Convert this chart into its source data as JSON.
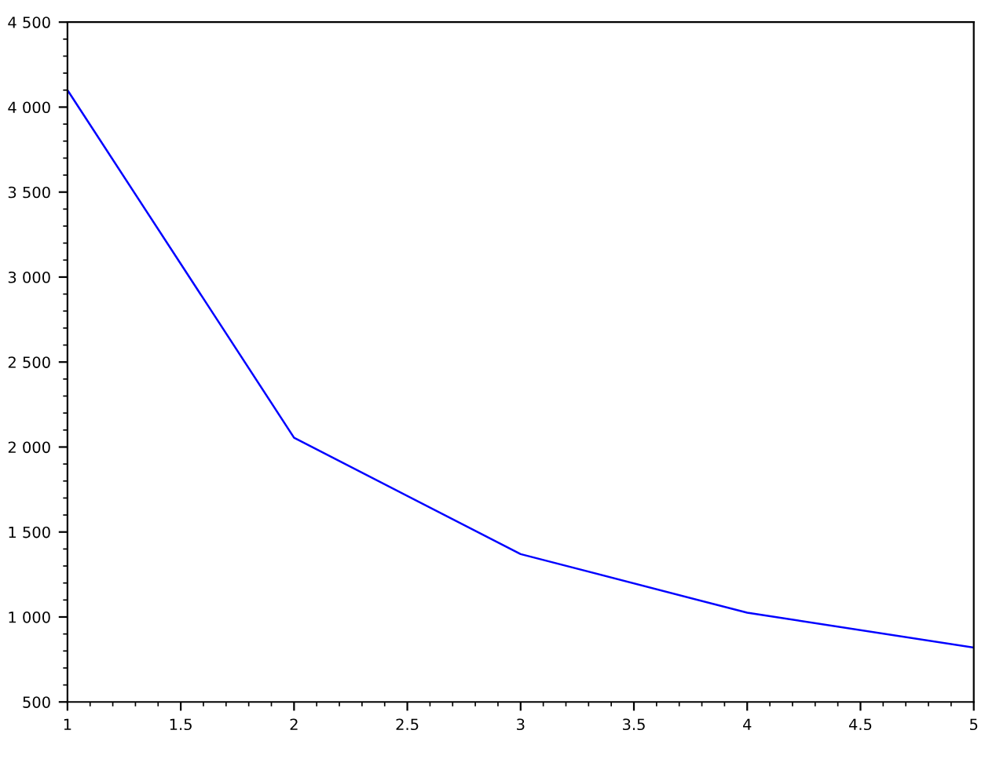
{
  "chart_data": {
    "type": "line",
    "x": [
      1,
      2,
      3,
      4,
      5
    ],
    "series": [
      {
        "color": "#0000ff",
        "values": [
          4100,
          2055,
          1370,
          1025,
          820
        ]
      }
    ],
    "xlim": [
      1,
      5
    ],
    "xticks": [
      1,
      1.5,
      2,
      2.5,
      3,
      3.5,
      4,
      4.5,
      5
    ],
    "ylim": [
      500,
      4500
    ],
    "yticks": [
      {
        "value": 500,
        "label": "500"
      },
      {
        "value": 1000,
        "label": "1 000"
      },
      {
        "value": 1500,
        "label": "1 500"
      },
      {
        "value": 2000,
        "label": "2 000"
      },
      {
        "value": 2500,
        "label": "2 500"
      },
      {
        "value": 3000,
        "label": "3 000"
      },
      {
        "value": 3500,
        "label": "3 500"
      },
      {
        "value": 4000,
        "label": "4 000"
      },
      {
        "value": 4500,
        "label": "4 500"
      }
    ],
    "grid": false,
    "legend": false,
    "marker": "none",
    "line_style": "solid"
  }
}
